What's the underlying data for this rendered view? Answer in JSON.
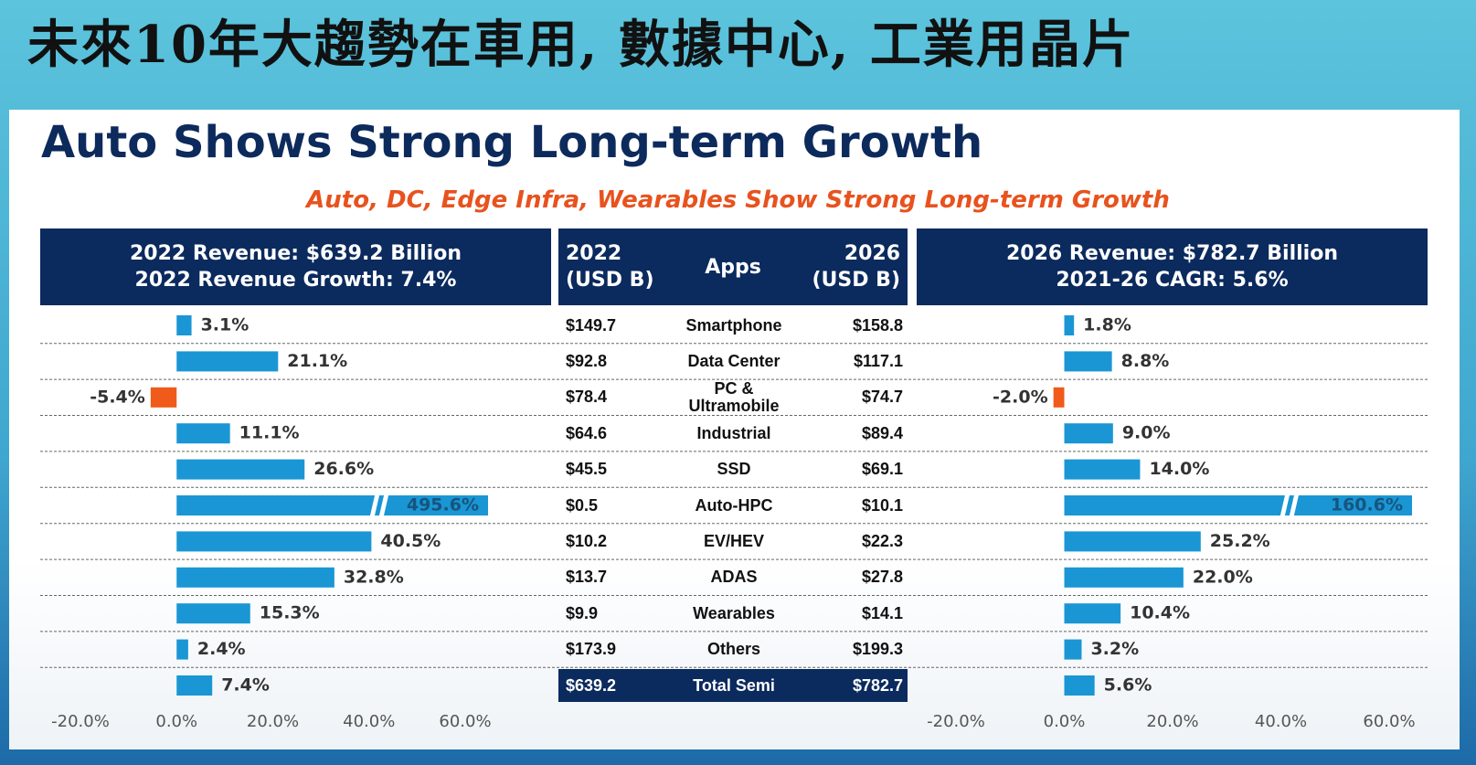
{
  "header": {
    "banner": "未來10年大趨勢在車用, 數據中心, 工業用晶片",
    "title": "Auto Shows Strong Long-term Growth",
    "subtitle": "Auto, DC, Edge Infra, Wearables Show Strong Long-term Growth"
  },
  "table": {
    "header": {
      "left": [
        "2022",
        "(USD B)"
      ],
      "center": "Apps",
      "right": [
        "2026",
        "(USD B)"
      ]
    },
    "rows": [
      [
        "$149.7",
        "Smartphone",
        "$158.8"
      ],
      [
        "$92.8",
        "Data Center",
        "$117.1"
      ],
      [
        "$78.4",
        "PC & Ultramobile",
        "$74.7"
      ],
      [
        "$64.6",
        "Industrial",
        "$89.4"
      ],
      [
        "$45.5",
        "SSD",
        "$69.1"
      ],
      [
        "$0.5",
        "Auto-HPC",
        "$10.1"
      ],
      [
        "$10.2",
        "EV/HEV",
        "$22.3"
      ],
      [
        "$13.7",
        "ADAS",
        "$27.8"
      ],
      [
        "$9.9",
        "Wearables",
        "$14.1"
      ],
      [
        "$173.9",
        "Others",
        "$199.3"
      ],
      [
        "$639.2",
        "Total Semi",
        "$782.7"
      ]
    ]
  },
  "chart_data": [
    {
      "type": "bar",
      "orientation": "horizontal",
      "title": "2022 Revenue: $639.2 Billion",
      "subtitle": "2022 Revenue Growth: 7.4%",
      "values": [
        3.1,
        21.1,
        -5.4,
        11.1,
        26.6,
        495.6,
        40.5,
        32.8,
        15.3,
        2.4,
        7.4
      ],
      "value_labels": [
        "3.1%",
        "21.1%",
        "-5.4%",
        "11.1%",
        "26.6%",
        "495.6%",
        "40.5%",
        "32.8%",
        "15.3%",
        "2.4%",
        "7.4%"
      ],
      "color": "#1a96d4",
      "negative_color": "#f05a1a",
      "axis_break": true,
      "xlim": [
        -20,
        60
      ],
      "xticks": [
        {
          "value": -20,
          "label": "-20.0%"
        },
        {
          "value": 0,
          "label": "0.0%"
        },
        {
          "value": 20,
          "label": "20.0%"
        },
        {
          "value": 40,
          "label": "40.0%"
        },
        {
          "value": 60,
          "label": "60.0%"
        }
      ]
    },
    {
      "type": "bar",
      "orientation": "horizontal",
      "title": "2026 Revenue: $782.7 Billion",
      "subtitle": "2021-26 CAGR: 5.6%",
      "values": [
        1.8,
        8.8,
        -2.0,
        9.0,
        14.0,
        160.6,
        25.2,
        22.0,
        10.4,
        3.2,
        5.6
      ],
      "value_labels": [
        "1.8%",
        "8.8%",
        "-2.0%",
        "9.0%",
        "14.0%",
        "160.6%",
        "25.2%",
        "22.0%",
        "10.4%",
        "3.2%",
        "5.6%"
      ],
      "color": "#1a96d4",
      "negative_color": "#f05a1a",
      "axis_break": true,
      "xlim": [
        -20,
        60
      ],
      "xticks": [
        {
          "value": -20,
          "label": "-20.0%"
        },
        {
          "value": 0,
          "label": "0.0%"
        },
        {
          "value": 20,
          "label": "20.0%"
        },
        {
          "value": 40,
          "label": "40.0%"
        },
        {
          "value": 60,
          "label": "60.0%"
        }
      ]
    }
  ]
}
